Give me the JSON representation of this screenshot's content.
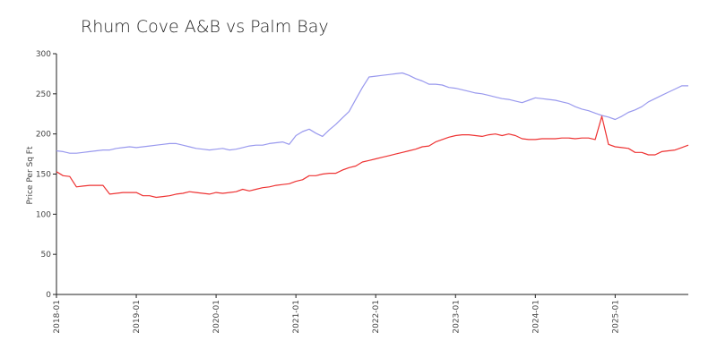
{
  "chart_data": {
    "type": "line",
    "title": "Rhum Cove A&B vs Palm Bay",
    "xlabel": "",
    "ylabel": "Price Per Sq Ft",
    "ylim": [
      0,
      300
    ],
    "yticks": [
      0,
      50,
      100,
      150,
      200,
      250,
      300
    ],
    "xlim": [
      "2018-01",
      "2025-12"
    ],
    "xticks": [
      "2018-01",
      "2019-01",
      "2020-01",
      "2021-01",
      "2022-01",
      "2023-01",
      "2024-01",
      "2025-01"
    ],
    "grid": false,
    "legend": "none",
    "x": [
      "2018-01",
      "2018-02",
      "2018-03",
      "2018-04",
      "2018-05",
      "2018-06",
      "2018-07",
      "2018-08",
      "2018-09",
      "2018-10",
      "2018-11",
      "2018-12",
      "2019-01",
      "2019-02",
      "2019-03",
      "2019-04",
      "2019-05",
      "2019-06",
      "2019-07",
      "2019-08",
      "2019-09",
      "2019-10",
      "2019-11",
      "2019-12",
      "2020-01",
      "2020-02",
      "2020-03",
      "2020-04",
      "2020-05",
      "2020-06",
      "2020-07",
      "2020-08",
      "2020-09",
      "2020-10",
      "2020-11",
      "2020-12",
      "2021-01",
      "2021-02",
      "2021-03",
      "2021-04",
      "2021-05",
      "2021-06",
      "2021-07",
      "2021-08",
      "2021-09",
      "2021-10",
      "2021-11",
      "2021-12",
      "2022-01",
      "2022-02",
      "2022-03",
      "2022-04",
      "2022-05",
      "2022-06",
      "2022-07",
      "2022-08",
      "2022-09",
      "2022-10",
      "2022-11",
      "2022-12",
      "2023-01",
      "2023-02",
      "2023-03",
      "2023-04",
      "2023-05",
      "2023-06",
      "2023-07",
      "2023-08",
      "2023-09",
      "2023-10",
      "2023-11",
      "2023-12",
      "2024-01",
      "2024-02",
      "2024-03",
      "2024-04",
      "2024-05",
      "2024-06",
      "2024-07",
      "2024-08",
      "2024-09",
      "2024-10",
      "2024-11",
      "2024-12",
      "2025-01",
      "2025-02",
      "2025-03",
      "2025-04",
      "2025-05",
      "2025-06",
      "2025-07",
      "2025-08",
      "2025-09",
      "2025-10",
      "2025-11",
      "2025-12"
    ],
    "series": [
      {
        "color": "#9999ee",
        "values": [
          179,
          178,
          176,
          176,
          177,
          178,
          179,
          180,
          180,
          182,
          183,
          184,
          183,
          184,
          185,
          186,
          187,
          188,
          188,
          186,
          184,
          182,
          181,
          180,
          181,
          182,
          180,
          181,
          183,
          185,
          186,
          186,
          188,
          189,
          190,
          187,
          198,
          203,
          206,
          201,
          197,
          205,
          212,
          220,
          228,
          243,
          258,
          271,
          272,
          273,
          274,
          275,
          276,
          273,
          269,
          266,
          262,
          262,
          261,
          258,
          257,
          255,
          253,
          251,
          250,
          248,
          246,
          244,
          243,
          241,
          239,
          242,
          245,
          244,
          243,
          242,
          240,
          238,
          234,
          231,
          229,
          226,
          223,
          221,
          218,
          222,
          227,
          230,
          234,
          240,
          244,
          248,
          252,
          256,
          260,
          260
        ]
      },
      {
        "color": "#ee3333",
        "values": [
          153,
          148,
          147,
          134,
          135,
          136,
          136,
          136,
          125,
          126,
          127,
          127,
          127,
          123,
          123,
          121,
          122,
          123,
          125,
          126,
          128,
          127,
          126,
          125,
          127,
          126,
          127,
          128,
          131,
          129,
          131,
          133,
          134,
          136,
          137,
          138,
          141,
          143,
          148,
          148,
          150,
          151,
          151,
          155,
          158,
          160,
          165,
          167,
          169,
          171,
          173,
          175,
          177,
          179,
          181,
          184,
          185,
          190,
          193,
          196,
          198,
          199,
          199,
          198,
          197,
          199,
          200,
          198,
          200,
          198,
          194,
          193,
          193,
          194,
          194,
          194,
          195,
          195,
          194,
          195,
          195,
          193,
          222,
          187,
          184,
          183,
          182,
          177,
          177,
          174,
          174,
          178,
          179,
          180,
          183,
          186
        ]
      }
    ]
  }
}
